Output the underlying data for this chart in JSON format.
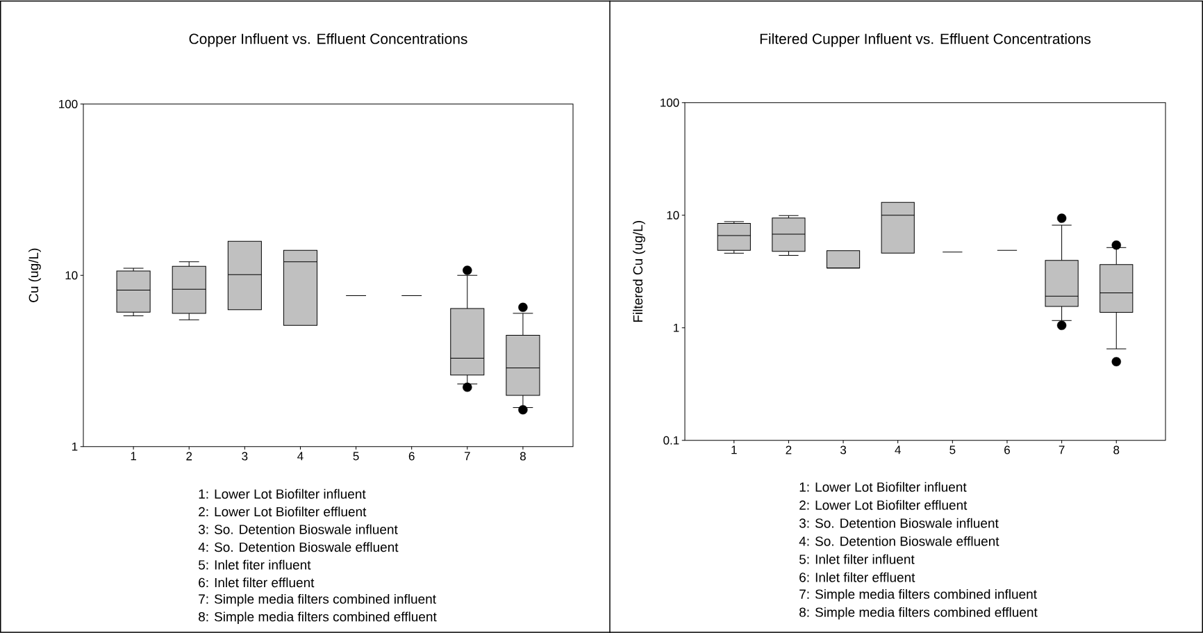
{
  "chart_data": [
    {
      "type": "box",
      "title": "Copper Influent vs. Effluent Concentrations",
      "ylabel": "Cu (ug/L)",
      "categories": [
        "1",
        "2",
        "3",
        "4",
        "5",
        "6",
        "7",
        "8"
      ],
      "log": true,
      "ylim": [
        1,
        100
      ],
      "yticks": [
        1,
        10,
        100
      ],
      "series": [
        {
          "colors": [
            "#c0c0c0",
            "#c0c0c0",
            "#c0c0c0",
            "#c0c0c0",
            "#000000",
            "#000000",
            "#c0c0c0",
            "#c0c0c0"
          ],
          "boxes": [
            {
              "low": 5.8,
              "q1": 6.1,
              "median": 8.2,
              "q3": 10.6,
              "high": 11.0
            },
            {
              "low": 5.5,
              "q1": 6.0,
              "median": 8.3,
              "q3": 11.3,
              "high": 12.0
            },
            {
              "low": 6.3,
              "q1": 6.3,
              "median": 10.1,
              "q3": 15.8,
              "high": 15.8
            },
            {
              "low": 5.1,
              "q1": 5.1,
              "median": 12.0,
              "q3": 14.0,
              "high": 14.0
            },
            {
              "low": 7.6,
              "q1": 7.6,
              "median": 7.6,
              "q3": 7.6,
              "high": 7.6
            },
            {
              "low": 7.6,
              "q1": 7.6,
              "median": 7.6,
              "q3": 7.6,
              "high": 7.6
            },
            {
              "low": 2.32,
              "q1": 2.62,
              "median": 3.28,
              "q3": 6.4,
              "high": 10.0,
              "outliers": [
                10.7,
                2.22
              ]
            },
            {
              "low": 1.69,
              "q1": 1.99,
              "median": 2.88,
              "q3": 4.47,
              "high": 6.0,
              "outliers": [
                6.5,
                1.64
              ]
            }
          ]
        }
      ],
      "annotations": [
        "1: Lower Lot Biofilter influent",
        "2: Lower Lot Biofilter effluent",
        "3: So. Detention Bioswale influent",
        "4: So. Detention Bioswale effluent",
        "5: Inlet fiter influent",
        "6: Inlet filter effluent",
        "7: Simple media filters combined influent",
        "8: Simple media filters combined effluent"
      ]
    },
    {
      "type": "box",
      "title": "Filtered Cupper Influent vs. Effluent Concentrations",
      "ylabel": "Filtered Cu (ug/L)",
      "categories": [
        "1",
        "2",
        "3",
        "4",
        "5",
        "6",
        "7",
        "8"
      ],
      "log": true,
      "ylim": [
        0.1,
        100
      ],
      "yticks": [
        0.1,
        1,
        10,
        100
      ],
      "series": [
        {
          "colors": [
            "#c0c0c0",
            "#c0c0c0",
            "#c0c0c0",
            "#c0c0c0",
            "#000000",
            "#000000",
            "#c0c0c0",
            "#c0c0c0"
          ],
          "boxes": [
            {
              "low": 4.6,
              "q1": 4.87,
              "median": 6.6,
              "q3": 8.46,
              "high": 8.77
            },
            {
              "low": 4.4,
              "q1": 4.77,
              "median": 6.8,
              "q3": 9.43,
              "high": 9.93
            },
            {
              "low": 3.39,
              "q1": 3.39,
              "median": 3.39,
              "q3": 4.84,
              "high": 4.84
            },
            {
              "low": 4.6,
              "q1": 4.6,
              "median": 10.0,
              "q3": 13.0,
              "high": 13.0
            },
            {
              "low": 4.7,
              "q1": 4.7,
              "median": 4.7,
              "q3": 4.7,
              "high": 4.7
            },
            {
              "low": 4.87,
              "q1": 4.87,
              "median": 4.87,
              "q3": 4.87,
              "high": 4.87
            },
            {
              "low": 1.16,
              "q1": 1.55,
              "median": 1.91,
              "q3": 3.97,
              "high": 8.16,
              "outliers": [
                9.4,
                1.05
              ]
            },
            {
              "low": 0.65,
              "q1": 1.37,
              "median": 2.04,
              "q3": 3.64,
              "high": 5.16,
              "outliers": [
                5.43,
                0.5
              ]
            }
          ]
        }
      ],
      "annotations": [
        "1: Lower Lot Biofilter influent",
        "2: Lower Lot Biofilter effluent",
        "3: So. Detention Bioswale influent",
        "4: So. Detention Bioswale effluent",
        "5: Inlet filter influent",
        "6: Inlet filter effluent",
        "7: Simple media filters combined influent",
        "8: Simple media filters combined effluent"
      ]
    }
  ]
}
